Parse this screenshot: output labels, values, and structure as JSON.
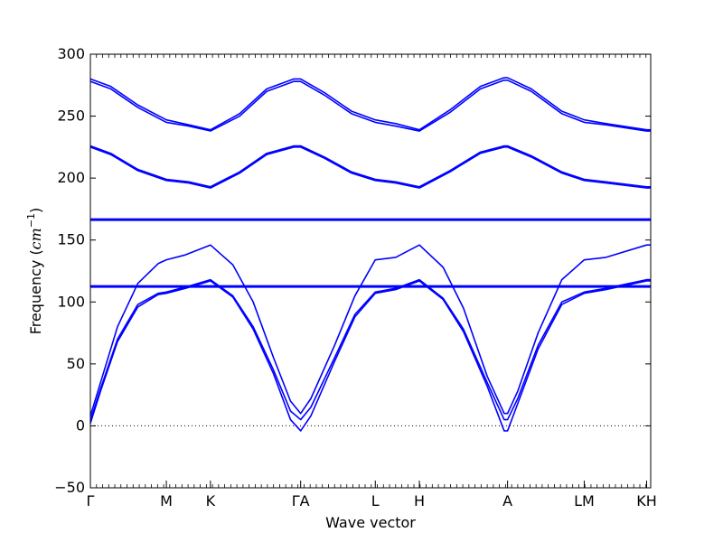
{
  "chart_data": {
    "type": "line",
    "title": "",
    "xlabel": "Wave vector",
    "ylabel": "Frequency (cm⁻¹)",
    "ylabel_base": "Frequency (",
    "ylabel_unit": "cm",
    "ylabel_exp": "−1",
    "ylabel_close": ")",
    "ylim": [
      -50,
      300
    ],
    "xlim": [
      0,
      8.26
    ],
    "yticks": [
      -50,
      0,
      50,
      100,
      150,
      200,
      250,
      300
    ],
    "ytick_labels": [
      "−50",
      "0",
      "50",
      "100",
      "150",
      "200",
      "250",
      "300"
    ],
    "xticks": [
      {
        "label": "Γ",
        "x": 0
      },
      {
        "label": "M",
        "x": 1.12
      },
      {
        "label": "K",
        "x": 1.77
      },
      {
        "label": "ΓA",
        "x": 3.1
      },
      {
        "label": "L",
        "x": 4.2
      },
      {
        "label": "H",
        "x": 4.85
      },
      {
        "label": "A",
        "x": 6.15
      },
      {
        "label": "LM",
        "x": 7.28
      },
      {
        "label": "KH",
        "x": 8.2
      }
    ],
    "minor_tick_step": 0.09,
    "zero_line": true,
    "grid": false,
    "line_color": "#0000ff",
    "series": [
      {
        "x": [
          0,
          0.3,
          0.7,
          1.12,
          1.45,
          1.77,
          2.2,
          2.6,
          3.0,
          3.1,
          3.45,
          3.85,
          4.2,
          4.5,
          4.85,
          5.3,
          5.75,
          6.1,
          6.15,
          6.5,
          6.95,
          7.28,
          7.6,
          8.2,
          8.26
        ],
        "y": [
          280,
          274,
          259,
          247,
          243,
          239,
          252,
          272,
          280,
          280,
          269,
          254,
          247,
          244,
          239,
          255,
          274,
          281,
          281,
          272,
          254,
          247,
          244,
          239,
          239
        ]
      },
      {
        "x": [
          0,
          0.3,
          0.7,
          1.12,
          1.45,
          1.77,
          2.2,
          2.6,
          3.0,
          3.1,
          3.45,
          3.85,
          4.2,
          4.5,
          4.85,
          5.3,
          5.75,
          6.1,
          6.15,
          6.5,
          6.95,
          7.28,
          7.6,
          8.2,
          8.26
        ],
        "y": [
          278,
          272,
          257,
          245,
          242,
          238,
          250,
          270,
          278,
          278,
          267,
          252,
          245,
          242,
          238,
          253,
          272,
          279,
          279,
          270,
          252,
          245,
          243,
          238,
          238
        ]
      },
      {
        "x": [
          0,
          0.3,
          0.7,
          1.12,
          1.45,
          1.77,
          2.2,
          2.6,
          3.0,
          3.1,
          3.45,
          3.85,
          4.2,
          4.5,
          4.85,
          5.3,
          5.75,
          6.1,
          6.15,
          6.5,
          6.95,
          7.28,
          7.6,
          8.2,
          8.26
        ],
        "y": [
          226,
          220,
          207,
          199,
          197,
          193,
          205,
          220,
          226,
          226,
          217,
          205,
          199,
          197,
          193,
          206,
          221,
          226,
          226,
          218,
          205,
          199,
          197,
          193,
          193
        ]
      },
      {
        "x": [
          0,
          0.3,
          0.7,
          1.12,
          1.45,
          1.77,
          2.2,
          2.6,
          3.0,
          3.1,
          3.45,
          3.85,
          4.2,
          4.5,
          4.85,
          5.3,
          5.75,
          6.1,
          6.15,
          6.5,
          6.95,
          7.28,
          7.6,
          8.2,
          8.26
        ],
        "y": [
          225,
          219,
          206,
          198,
          196,
          192,
          204,
          219,
          225,
          225,
          216,
          204,
          198,
          196,
          192,
          205,
          220,
          225,
          225,
          217,
          204,
          198,
          196,
          192,
          192
        ]
      },
      {
        "x": [
          0,
          8.26
        ],
        "y": [
          167,
          167
        ]
      },
      {
        "x": [
          0,
          8.26
        ],
        "y": [
          166,
          166
        ]
      },
      {
        "x": [
          0,
          8.26
        ],
        "y": [
          113,
          113
        ]
      },
      {
        "x": [
          0,
          8.26
        ],
        "y": [
          112,
          112
        ]
      },
      {
        "x": [
          0,
          0.15,
          0.4,
          0.7,
          1.0,
          1.12,
          1.4,
          1.77,
          2.1,
          2.4,
          2.7,
          2.95,
          3.1,
          3.25,
          3.6,
          3.9,
          4.2,
          4.5,
          4.85,
          5.2,
          5.5,
          5.85,
          6.1,
          6.15,
          6.3,
          6.6,
          6.95,
          7.28,
          7.6,
          8.2,
          8.26
        ],
        "y": [
          8,
          35,
          80,
          115,
          131,
          134,
          138,
          146,
          130,
          100,
          55,
          20,
          10,
          22,
          65,
          105,
          134,
          136,
          146,
          128,
          95,
          40,
          10,
          10,
          28,
          75,
          118,
          134,
          136,
          146,
          146
        ]
      },
      {
        "x": [
          0,
          0.15,
          0.4,
          0.7,
          1.0,
          1.12,
          1.4,
          1.77,
          2.1,
          2.4,
          2.7,
          2.95,
          3.1,
          3.25,
          3.6,
          3.9,
          4.2,
          4.5,
          4.85,
          5.2,
          5.5,
          5.85,
          6.1,
          6.15,
          6.3,
          6.6,
          6.95,
          7.28,
          7.6,
          8.2,
          8.26
        ],
        "y": [
          4,
          30,
          70,
          98,
          107,
          108,
          112,
          118,
          105,
          80,
          45,
          12,
          5,
          15,
          55,
          90,
          108,
          111,
          118,
          103,
          78,
          35,
          5,
          5,
          22,
          65,
          100,
          108,
          111,
          118,
          118
        ]
      },
      {
        "x": [
          0,
          0.15,
          0.4,
          0.7,
          1.0,
          1.12,
          1.4,
          1.77,
          2.1,
          2.4,
          2.7,
          2.95,
          3.1,
          3.25,
          3.6,
          3.9,
          4.2,
          4.5,
          4.85,
          5.2,
          5.5,
          5.85,
          6.1,
          6.15,
          6.3,
          6.6,
          6.95,
          7.28,
          7.6,
          8.2,
          8.26
        ],
        "y": [
          2,
          28,
          68,
          96,
          106,
          107,
          111,
          117,
          104,
          78,
          42,
          5,
          -4,
          8,
          52,
          88,
          107,
          110,
          117,
          102,
          76,
          32,
          -4,
          -4,
          18,
          62,
          98,
          107,
          110,
          117,
          117
        ]
      }
    ]
  }
}
